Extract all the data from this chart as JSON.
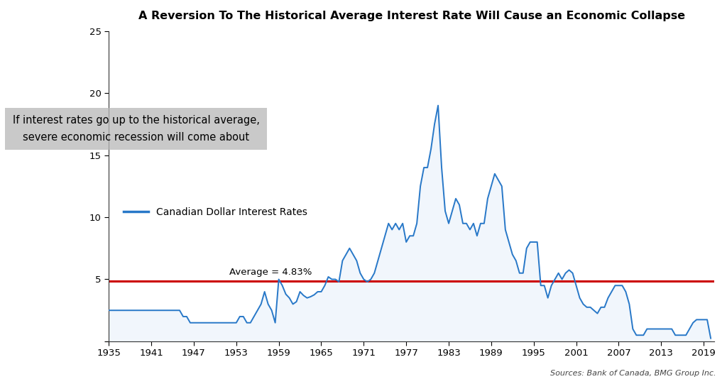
{
  "title": "A Reversion To The Historical Average Interest Rate Will Cause an Economic Collapse",
  "source_text": "Sources: Bank of Canada, BMG Group Inc.",
  "average_label": "Average = 4.83%",
  "average_value": 4.83,
  "legend_label": "Canadian Dollar Interest Rates",
  "annotation_line1": "If interest rates go up to the historical average,",
  "annotation_line2": "severe economic recession will come about",
  "line_color": "#2878c8",
  "average_line_color": "#cc0000",
  "fill_color": "#c8dff5",
  "background_color": "#ffffff",
  "xlim": [
    1935,
    2020.5
  ],
  "ylim": [
    0,
    25
  ],
  "yticks": [
    0,
    5,
    10,
    15,
    20,
    25
  ],
  "xticks": [
    1935,
    1941,
    1947,
    1953,
    1959,
    1965,
    1971,
    1977,
    1983,
    1989,
    1995,
    2001,
    2007,
    2013,
    2019
  ],
  "years": [
    1935.0,
    1935.5,
    1936.0,
    1936.5,
    1937.0,
    1937.5,
    1938.0,
    1938.5,
    1939.0,
    1939.5,
    1940.0,
    1940.5,
    1941.0,
    1941.5,
    1942.0,
    1942.5,
    1943.0,
    1943.5,
    1944.0,
    1944.5,
    1945.0,
    1945.5,
    1946.0,
    1946.5,
    1947.0,
    1947.5,
    1948.0,
    1948.5,
    1949.0,
    1949.5,
    1950.0,
    1950.5,
    1951.0,
    1951.5,
    1952.0,
    1952.5,
    1953.0,
    1953.5,
    1954.0,
    1954.5,
    1955.0,
    1955.5,
    1956.0,
    1956.5,
    1957.0,
    1957.5,
    1958.0,
    1958.5,
    1959.0,
    1959.5,
    1960.0,
    1960.5,
    1961.0,
    1961.5,
    1962.0,
    1962.5,
    1963.0,
    1963.5,
    1964.0,
    1964.5,
    1965.0,
    1965.5,
    1966.0,
    1966.5,
    1967.0,
    1967.5,
    1968.0,
    1968.5,
    1969.0,
    1969.5,
    1970.0,
    1970.5,
    1971.0,
    1971.5,
    1972.0,
    1972.5,
    1973.0,
    1973.5,
    1974.0,
    1974.5,
    1975.0,
    1975.5,
    1976.0,
    1976.5,
    1977.0,
    1977.5,
    1978.0,
    1978.5,
    1979.0,
    1979.5,
    1980.0,
    1980.5,
    1981.0,
    1981.5,
    1982.0,
    1982.5,
    1983.0,
    1983.5,
    1984.0,
    1984.5,
    1985.0,
    1985.5,
    1986.0,
    1986.5,
    1987.0,
    1987.5,
    1988.0,
    1988.5,
    1989.0,
    1989.5,
    1990.0,
    1990.5,
    1991.0,
    1991.5,
    1992.0,
    1992.5,
    1993.0,
    1993.5,
    1994.0,
    1994.5,
    1995.0,
    1995.5,
    1996.0,
    1996.5,
    1997.0,
    1997.5,
    1998.0,
    1998.5,
    1999.0,
    1999.5,
    2000.0,
    2000.5,
    2001.0,
    2001.5,
    2002.0,
    2002.5,
    2003.0,
    2003.5,
    2004.0,
    2004.5,
    2005.0,
    2005.5,
    2006.0,
    2006.5,
    2007.0,
    2007.5,
    2008.0,
    2008.5,
    2009.0,
    2009.5,
    2010.0,
    2010.5,
    2011.0,
    2011.5,
    2012.0,
    2012.5,
    2013.0,
    2013.5,
    2014.0,
    2014.5,
    2015.0,
    2015.5,
    2016.0,
    2016.5,
    2017.0,
    2017.5,
    2018.0,
    2018.5,
    2019.0,
    2019.5,
    2020.0
  ],
  "rates": [
    2.5,
    2.5,
    2.5,
    2.5,
    2.5,
    2.5,
    2.5,
    2.5,
    2.5,
    2.5,
    2.5,
    2.5,
    2.5,
    2.5,
    2.5,
    2.5,
    2.5,
    2.5,
    2.5,
    2.5,
    2.5,
    2.0,
    2.0,
    1.5,
    1.5,
    1.5,
    1.5,
    1.5,
    1.5,
    1.5,
    1.5,
    1.5,
    1.5,
    1.5,
    1.5,
    1.5,
    1.5,
    2.0,
    2.0,
    1.5,
    1.5,
    2.0,
    2.5,
    3.0,
    4.0,
    3.0,
    2.5,
    1.5,
    5.0,
    4.5,
    3.8,
    3.5,
    3.0,
    3.2,
    4.0,
    3.7,
    3.5,
    3.6,
    3.75,
    4.0,
    4.0,
    4.5,
    5.2,
    5.0,
    5.0,
    4.8,
    6.5,
    7.0,
    7.5,
    7.0,
    6.5,
    5.5,
    5.0,
    4.8,
    5.0,
    5.5,
    6.5,
    7.5,
    8.5,
    9.5,
    9.0,
    9.5,
    9.0,
    9.5,
    8.0,
    8.5,
    8.5,
    9.5,
    12.5,
    14.0,
    14.0,
    15.5,
    17.5,
    19.0,
    14.0,
    10.5,
    9.5,
    10.5,
    11.5,
    11.0,
    9.5,
    9.5,
    9.0,
    9.5,
    8.5,
    9.5,
    9.5,
    11.5,
    12.5,
    13.5,
    13.0,
    12.5,
    9.0,
    8.0,
    7.0,
    6.5,
    5.5,
    5.5,
    7.5,
    8.0,
    8.0,
    8.0,
    4.5,
    4.5,
    3.5,
    4.5,
    5.0,
    5.5,
    5.0,
    5.5,
    5.75,
    5.5,
    4.5,
    3.5,
    3.0,
    2.75,
    2.75,
    2.5,
    2.25,
    2.75,
    2.75,
    3.5,
    4.0,
    4.5,
    4.5,
    4.5,
    4.0,
    3.0,
    1.0,
    0.5,
    0.5,
    0.5,
    1.0,
    1.0,
    1.0,
    1.0,
    1.0,
    1.0,
    1.0,
    1.0,
    0.5,
    0.5,
    0.5,
    0.5,
    1.0,
    1.5,
    1.75,
    1.75,
    1.75,
    1.75,
    0.25
  ]
}
